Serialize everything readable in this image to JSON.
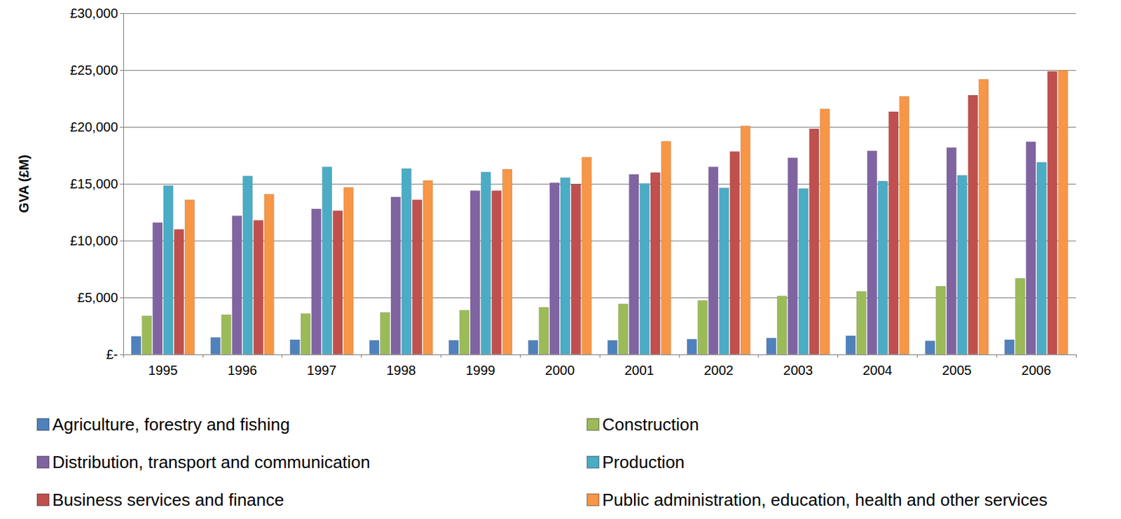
{
  "chart_data": {
    "type": "bar",
    "y_label": "GVA (£M)",
    "categories": [
      "1995",
      "1996",
      "1997",
      "1998",
      "1999",
      "2000",
      "2001",
      "2002",
      "2003",
      "2004",
      "2005",
      "2006"
    ],
    "series": [
      {
        "name": "Agriculture, forestry and fishing",
        "color": "#4f81bd",
        "values": [
          1600,
          1500,
          1300,
          1250,
          1250,
          1250,
          1250,
          1350,
          1450,
          1650,
          1200,
          1300
        ]
      },
      {
        "name": "Construction",
        "color": "#9bbb59",
        "values": [
          3400,
          3500,
          3600,
          3700,
          3900,
          4150,
          4450,
          4750,
          5150,
          5550,
          6000,
          6700
        ]
      },
      {
        "name": "Distribution, transport and communication",
        "color": "#8064a2",
        "values": [
          11600,
          12200,
          12800,
          13850,
          14400,
          15100,
          15850,
          16500,
          17300,
          17900,
          18200,
          18700
        ]
      },
      {
        "name": "Production",
        "color": "#4bacc6",
        "values": [
          14850,
          15700,
          16500,
          16350,
          16050,
          15550,
          15050,
          14650,
          14600,
          15250,
          15750,
          16900
        ]
      },
      {
        "name": "Business services and finance",
        "color": "#c0504d",
        "values": [
          11000,
          11800,
          12650,
          13600,
          14400,
          14950,
          16000,
          17850,
          19850,
          21350,
          22800,
          24900
        ]
      },
      {
        "name": "Public administration, education, health and other services",
        "color": "#f79646",
        "values": [
          13600,
          14100,
          14700,
          15300,
          16300,
          17350,
          18750,
          20100,
          21600,
          22700,
          24200,
          25000
        ]
      }
    ],
    "ylim": [
      0,
      30000
    ],
    "yticks": [
      {
        "value": 0,
        "label": "£-"
      },
      {
        "value": 5000,
        "label": "£5,000"
      },
      {
        "value": 10000,
        "label": "£10,000"
      },
      {
        "value": 15000,
        "label": "£15,000"
      },
      {
        "value": 20000,
        "label": "£20,000"
      },
      {
        "value": 25000,
        "label": "£25,000"
      },
      {
        "value": 30000,
        "label": "£30,000"
      }
    ],
    "grid": true,
    "legend": "bottom"
  }
}
